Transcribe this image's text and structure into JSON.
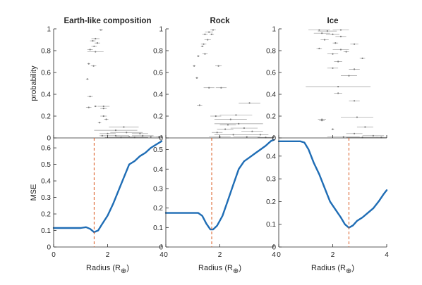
{
  "chart_data": {
    "type": "scatter",
    "panels": [
      {
        "title": "Earth-like composition",
        "top": {
          "ylabel": "probability",
          "ylim": [
            0,
            1
          ],
          "yticks": [
            "0",
            "0.2",
            "0.4",
            "0.6",
            "0.8",
            "1"
          ],
          "points": [
            {
              "x": 1.75,
              "y": 0.99,
              "err": 0.08
            },
            {
              "x": 1.55,
              "y": 0.91,
              "err": 0.15
            },
            {
              "x": 1.45,
              "y": 0.89,
              "err": 0.1
            },
            {
              "x": 1.62,
              "y": 0.87,
              "err": 0.1
            },
            {
              "x": 1.5,
              "y": 0.84,
              "err": 0.1
            },
            {
              "x": 1.35,
              "y": 0.81,
              "err": 0.1
            },
            {
              "x": 1.55,
              "y": 0.79,
              "err": 0.3
            },
            {
              "x": 1.48,
              "y": 0.66,
              "err": 0.1
            },
            {
              "x": 1.3,
              "y": 0.68,
              "err": 0.05
            },
            {
              "x": 1.25,
              "y": 0.54,
              "err": 0.05
            },
            {
              "x": 1.35,
              "y": 0.38,
              "err": 0.1
            },
            {
              "x": 1.3,
              "y": 0.28,
              "err": 0.1
            },
            {
              "x": 1.85,
              "y": 0.29,
              "err": 0.22
            },
            {
              "x": 1.85,
              "y": 0.27,
              "err": 0.12
            },
            {
              "x": 1.55,
              "y": 0.29,
              "err": 0.05
            },
            {
              "x": 1.85,
              "y": 0.2,
              "err": 0.12
            },
            {
              "x": 1.95,
              "y": 0.17,
              "err": 0.08
            },
            {
              "x": 1.7,
              "y": 0.14,
              "err": 0.06
            },
            {
              "x": 2.6,
              "y": 0.1,
              "err": 0.55
            },
            {
              "x": 2.3,
              "y": 0.07,
              "err": 0.8
            },
            {
              "x": 2.7,
              "y": 0.05,
              "err": 0.6
            },
            {
              "x": 2.0,
              "y": 0.04,
              "err": 0.3
            },
            {
              "x": 3.2,
              "y": 0.04,
              "err": 0.3
            },
            {
              "x": 2.3,
              "y": 0.02,
              "err": 0.5
            },
            {
              "x": 3.3,
              "y": 0.02,
              "err": 0.4
            },
            {
              "x": 1.8,
              "y": 0.02,
              "err": 0.1
            },
            {
              "x": 2.8,
              "y": 0.01,
              "err": 0.5
            },
            {
              "x": 3.6,
              "y": 0.01,
              "err": 0.35
            },
            {
              "x": 3.9,
              "y": 0.01,
              "err": 0.1
            },
            {
              "x": 2.5,
              "y": 0.005,
              "err": 0.6
            },
            {
              "x": 3.0,
              "y": 0.005,
              "err": 0.5
            }
          ]
        },
        "bottom": {
          "ylabel": "MSE",
          "ylim": [
            0,
            0.66
          ],
          "yticks": [
            "0",
            "0.1",
            "0.2",
            "0.3",
            "0.4",
            "0.5",
            "0.6"
          ],
          "curve_x": [
            0,
            1.0,
            1.2,
            1.35,
            1.5,
            1.65,
            1.8,
            2.0,
            2.2,
            2.4,
            2.6,
            2.8,
            3.0,
            3.2,
            3.4,
            3.6,
            3.8,
            4.0
          ],
          "curve_y": [
            0.115,
            0.115,
            0.12,
            0.11,
            0.09,
            0.1,
            0.14,
            0.19,
            0.26,
            0.34,
            0.42,
            0.5,
            0.52,
            0.55,
            0.57,
            0.6,
            0.62,
            0.64
          ]
        },
        "vline_x": 1.5
      },
      {
        "title": "Rock",
        "top": {
          "ylim": [
            0,
            1
          ],
          "yticks": [
            "0",
            "0.2",
            "0.4",
            "0.6",
            "0.8",
            "1"
          ],
          "points": [
            {
              "x": 1.75,
              "y": 0.99,
              "err": 0.1
            },
            {
              "x": 1.6,
              "y": 0.97,
              "err": 0.15
            },
            {
              "x": 1.45,
              "y": 0.95,
              "err": 0.1
            },
            {
              "x": 1.7,
              "y": 0.95,
              "err": 0.08
            },
            {
              "x": 1.55,
              "y": 0.9,
              "err": 0.12
            },
            {
              "x": 1.4,
              "y": 0.86,
              "err": 0.1
            },
            {
              "x": 1.35,
              "y": 0.84,
              "err": 0.05
            },
            {
              "x": 1.45,
              "y": 0.77,
              "err": 0.1
            },
            {
              "x": 1.2,
              "y": 0.75,
              "err": 0.05
            },
            {
              "x": 1.05,
              "y": 0.66,
              "err": 0.05
            },
            {
              "x": 1.95,
              "y": 0.66,
              "err": 0.12
            },
            {
              "x": 1.15,
              "y": 0.55,
              "err": 0.05
            },
            {
              "x": 1.6,
              "y": 0.46,
              "err": 0.2
            },
            {
              "x": 2.05,
              "y": 0.46,
              "err": 0.2
            },
            {
              "x": 1.25,
              "y": 0.3,
              "err": 0.1
            },
            {
              "x": 3.1,
              "y": 0.32,
              "err": 0.4
            },
            {
              "x": 1.85,
              "y": 0.2,
              "err": 0.2
            },
            {
              "x": 2.6,
              "y": 0.21,
              "err": 0.6
            },
            {
              "x": 2.4,
              "y": 0.17,
              "err": 0.6
            },
            {
              "x": 2.3,
              "y": 0.12,
              "err": 0.3
            },
            {
              "x": 2.7,
              "y": 0.13,
              "err": 0.9
            },
            {
              "x": 2.2,
              "y": 0.08,
              "err": 0.3
            },
            {
              "x": 2.9,
              "y": 0.09,
              "err": 0.5
            },
            {
              "x": 1.9,
              "y": 0.05,
              "err": 0.2
            },
            {
              "x": 3.2,
              "y": 0.06,
              "err": 0.4
            },
            {
              "x": 2.5,
              "y": 0.03,
              "err": 0.7
            },
            {
              "x": 3.5,
              "y": 0.03,
              "err": 0.3
            },
            {
              "x": 2.0,
              "y": 0.01,
              "err": 0.4
            },
            {
              "x": 3.0,
              "y": 0.01,
              "err": 0.5
            },
            {
              "x": 3.7,
              "y": 0.005,
              "err": 0.3
            }
          ]
        },
        "bottom": {
          "ylim": [
            0,
            0.56
          ],
          "yticks": [
            "0",
            "0.1",
            "0.2",
            "0.3",
            "0.4",
            "0.5"
          ],
          "curve_x": [
            0,
            0.8,
            1.0,
            1.2,
            1.35,
            1.5,
            1.65,
            1.75,
            1.9,
            2.1,
            2.3,
            2.5,
            2.7,
            2.9,
            3.1,
            3.3,
            3.5,
            3.7,
            3.9,
            4.0
          ],
          "curve_y": [
            0.175,
            0.175,
            0.175,
            0.175,
            0.16,
            0.12,
            0.09,
            0.09,
            0.11,
            0.16,
            0.24,
            0.32,
            0.4,
            0.44,
            0.46,
            0.48,
            0.5,
            0.52,
            0.545,
            0.55
          ]
        },
        "vline_x": 1.7
      },
      {
        "title": "Ice",
        "top": {
          "ylim": [
            0,
            1
          ],
          "yticks": [
            "0",
            "0.2",
            "0.4",
            "0.6",
            "0.8",
            "1"
          ],
          "points": [
            {
              "x": 1.5,
              "y": 0.99,
              "err": 0.4
            },
            {
              "x": 1.8,
              "y": 0.98,
              "err": 0.35
            },
            {
              "x": 2.3,
              "y": 0.99,
              "err": 0.3
            },
            {
              "x": 1.6,
              "y": 0.96,
              "err": 0.3
            },
            {
              "x": 2.0,
              "y": 0.95,
              "err": 0.25
            },
            {
              "x": 2.3,
              "y": 0.93,
              "err": 0.2
            },
            {
              "x": 1.7,
              "y": 0.9,
              "err": 0.15
            },
            {
              "x": 2.1,
              "y": 0.87,
              "err": 0.1
            },
            {
              "x": 2.8,
              "y": 0.86,
              "err": 0.15
            },
            {
              "x": 1.5,
              "y": 0.82,
              "err": 0.1
            },
            {
              "x": 2.3,
              "y": 0.81,
              "err": 0.3
            },
            {
              "x": 2.5,
              "y": 0.79,
              "err": 0.1
            },
            {
              "x": 2.0,
              "y": 0.77,
              "err": 0.2
            },
            {
              "x": 3.1,
              "y": 0.73,
              "err": 0.1
            },
            {
              "x": 2.2,
              "y": 0.7,
              "err": 0.15
            },
            {
              "x": 2.0,
              "y": 0.64,
              "err": 0.2
            },
            {
              "x": 2.8,
              "y": 0.63,
              "err": 0.2
            },
            {
              "x": 2.6,
              "y": 0.57,
              "err": 0.3
            },
            {
              "x": 2.2,
              "y": 0.47,
              "err": 1.2
            },
            {
              "x": 2.2,
              "y": 0.41,
              "err": 0.15
            },
            {
              "x": 2.8,
              "y": 0.34,
              "err": 0.2
            },
            {
              "x": 2.9,
              "y": 0.19,
              "err": 0.6
            },
            {
              "x": 1.6,
              "y": 0.17,
              "err": 0.15
            },
            {
              "x": 1.6,
              "y": 0.16,
              "err": 0.1
            },
            {
              "x": 2.0,
              "y": 0.08,
              "err": 0.05
            },
            {
              "x": 3.2,
              "y": 0.1,
              "err": 0.3
            },
            {
              "x": 2.8,
              "y": 0.04,
              "err": 0.3
            },
            {
              "x": 3.5,
              "y": 0.02,
              "err": 0.4
            },
            {
              "x": 2.4,
              "y": 0.01,
              "err": 0.6
            },
            {
              "x": 3.1,
              "y": 0.005,
              "err": 0.6
            },
            {
              "x": 3.8,
              "y": 0.005,
              "err": 0.2
            }
          ]
        },
        "bottom": {
          "ylim": [
            0,
            0.48
          ],
          "yticks": [
            "0",
            "0.1",
            "0.2",
            "0.3",
            "0.4"
          ],
          "curve_x": [
            0,
            0.8,
            0.95,
            1.1,
            1.3,
            1.5,
            1.7,
            1.9,
            2.1,
            2.3,
            2.45,
            2.6,
            2.75,
            2.9,
            3.1,
            3.3,
            3.5,
            3.7,
            3.9,
            4.0
          ],
          "curve_y": [
            0.465,
            0.465,
            0.46,
            0.43,
            0.37,
            0.32,
            0.26,
            0.2,
            0.165,
            0.13,
            0.1,
            0.085,
            0.095,
            0.115,
            0.13,
            0.15,
            0.17,
            0.2,
            0.235,
            0.25
          ]
        },
        "vline_x": 2.6
      }
    ],
    "xlim": [
      0,
      4
    ],
    "xticks": [
      "0",
      "2",
      "4"
    ],
    "xlabel_main": "Radius (R",
    "xlabel_sub": "⊕",
    "xlabel_close": ")",
    "colors": {
      "curve": "#1f6db5",
      "vline": "#d9541a",
      "points": "#7a7a7a",
      "axes": "#262626"
    }
  }
}
